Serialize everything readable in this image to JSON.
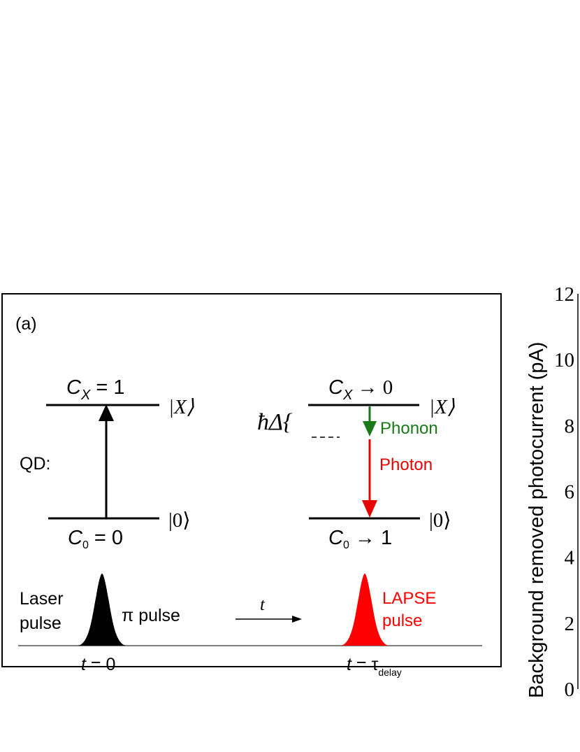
{
  "panel_label": "(a)",
  "qd_label": "QD:",
  "left": {
    "top_state": "|X⟩",
    "bottom_state": "|0⟩",
    "cx_symbol": "C",
    "cx_sub": "X",
    "cx_value": " = 1",
    "c0_symbol": "C",
    "c0_sub": "0",
    "c0_value": " = 0"
  },
  "right": {
    "top_state": "|X⟩",
    "bottom_state": "|0⟩",
    "cx_symbol": "C",
    "cx_sub": "X",
    "cx_value": " → 0",
    "c0_symbol": "C",
    "c0_sub": "0",
    "c0_value": " → 1",
    "detuning": "ħΔ{",
    "phonon": "Phonon",
    "photon": "Photon"
  },
  "pulses": {
    "laser_line1": "Laser",
    "laser_line2": "pulse",
    "pi_pulse": "π pulse",
    "time_arrow": "t",
    "lapse_line1": "LAPSE",
    "lapse_line2": "pulse",
    "t0_sym": "t",
    "t0_val": " = 0",
    "t1_sym": "t",
    "t1_val": " = τ",
    "t1_sub": "delay"
  },
  "axis": {
    "ylabel": "Background removed photocurrent (pA)",
    "ticks": [
      "0",
      "2",
      "4",
      "6",
      "8",
      "10",
      "12"
    ]
  },
  "colors": {
    "phonon": "#1a7a1a",
    "photon": "#e80000",
    "lapse": "#ff0000",
    "laser": "#000000"
  }
}
